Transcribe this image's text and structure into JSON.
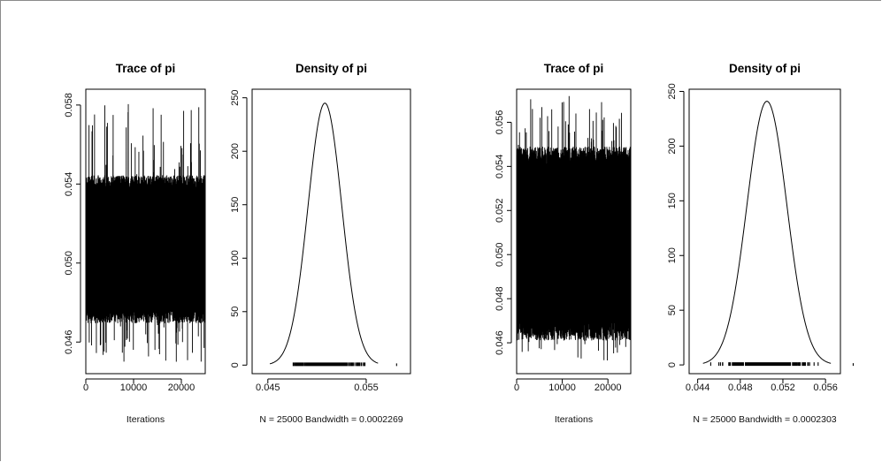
{
  "chart_data": [
    {
      "type": "line",
      "title": "Trace of pi",
      "xlabel": "Iterations",
      "ylabel": "",
      "xlim": [
        0,
        25000
      ],
      "ylim": [
        0.0444,
        0.0588
      ],
      "x_ticks": [
        "0",
        "10000",
        "20000"
      ],
      "x_tick_values": [
        0,
        10000,
        20000
      ],
      "y_ticks": [
        "0.046",
        "0.050",
        "0.054",
        "0.058"
      ],
      "y_tick_values": [
        0.046,
        0.05,
        0.054,
        0.058
      ],
      "series": [
        {
          "n": 25000,
          "mean": 0.0507,
          "band_low": 0.047,
          "band_high": 0.0545,
          "min": 0.045,
          "max": 0.0581
        }
      ]
    },
    {
      "type": "line",
      "title": "Density of pi",
      "xlabel": "N = 25000   Bandwidth = 0.0002269",
      "ylabel": "",
      "xlim": [
        0.0434,
        0.0595
      ],
      "ylim": [
        -8,
        258
      ],
      "x_ticks": [
        "0.045",
        "0.055"
      ],
      "x_tick_values": [
        0.045,
        0.055
      ],
      "y_ticks": [
        "0",
        "50",
        "100",
        "150",
        "200",
        "250"
      ],
      "y_tick_values": [
        0,
        50,
        100,
        150,
        200,
        250
      ],
      "series": [
        {
          "peak_x": 0.0508,
          "peak_y": 245,
          "support": [
            0.0452,
            0.0562
          ]
        }
      ]
    },
    {
      "type": "line",
      "title": "Trace of pi",
      "xlabel": "Iterations",
      "ylabel": "",
      "xlim": [
        0,
        25000
      ],
      "ylim": [
        0.0446,
        0.0575
      ],
      "x_ticks": [
        "0",
        "10000",
        "20000"
      ],
      "x_tick_values": [
        0,
        10000,
        20000
      ],
      "y_ticks": [
        "0.046",
        "0.048",
        "0.050",
        "0.052",
        "0.054",
        "0.056"
      ],
      "y_tick_values": [
        0.046,
        0.048,
        0.05,
        0.052,
        0.054,
        0.056
      ],
      "series": [
        {
          "n": 25000,
          "mean": 0.0505,
          "band_low": 0.0462,
          "band_high": 0.055,
          "min": 0.0452,
          "max": 0.0572
        }
      ]
    },
    {
      "type": "line",
      "title": "Density of pi",
      "xlabel": "N = 25000   Bandwidth = 0.0002303",
      "ylabel": "",
      "xlim": [
        0.0432,
        0.0574
      ],
      "ylim": [
        -8,
        252
      ],
      "x_ticks": [
        "0.044",
        "0.048",
        "0.052",
        "0.056"
      ],
      "x_tick_values": [
        0.044,
        0.048,
        0.052,
        0.056
      ],
      "y_ticks": [
        "0",
        "50",
        "100",
        "150",
        "200",
        "250"
      ],
      "y_tick_values": [
        0,
        50,
        100,
        150,
        200,
        250
      ],
      "series": [
        {
          "peak_x": 0.0505,
          "peak_y": 241,
          "support": [
            0.0445,
            0.0565
          ]
        }
      ]
    }
  ]
}
